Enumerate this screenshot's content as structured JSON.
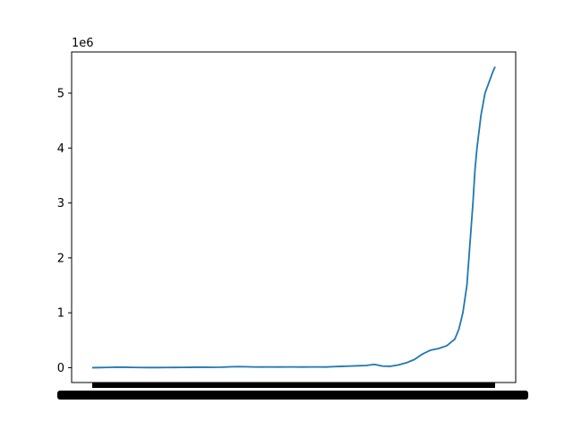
{
  "chart_data": {
    "type": "line",
    "title": "",
    "xlabel": "",
    "ylabel": "",
    "y_offset_label": "1e6",
    "y_tick_labels": [
      "0",
      "1",
      "2",
      "3",
      "4",
      "5"
    ],
    "y_tick_values": [
      0,
      1000000,
      2000000,
      3000000,
      4000000,
      5000000
    ],
    "ylim": [
      -270000,
      5750000
    ],
    "x_tick_labels_overlapping": true,
    "grid": false,
    "legend": "none",
    "series": [
      {
        "color": "#1f77b4",
        "x": [
          0,
          0.02,
          0.04,
          0.06,
          0.08,
          0.1,
          0.12,
          0.14,
          0.16,
          0.18,
          0.2,
          0.22,
          0.24,
          0.26,
          0.28,
          0.3,
          0.32,
          0.34,
          0.36,
          0.38,
          0.4,
          0.42,
          0.44,
          0.46,
          0.48,
          0.5,
          0.52,
          0.54,
          0.56,
          0.58,
          0.6,
          0.62,
          0.64,
          0.66,
          0.68,
          0.7,
          0.72,
          0.74,
          0.76,
          0.78,
          0.8,
          0.82,
          0.84,
          0.86,
          0.88,
          0.9,
          0.91,
          0.92,
          0.93,
          0.94,
          0.945,
          0.95,
          0.955,
          0.96,
          0.965,
          0.97,
          0.975,
          0.98,
          0.985,
          0.99,
          0.995,
          1.0
        ],
        "values": [
          0,
          2000,
          5000,
          10000,
          8000,
          5000,
          3000,
          2000,
          2000,
          3000,
          4000,
          5000,
          6000,
          8000,
          10000,
          7000,
          9000,
          15000,
          20000,
          18000,
          14000,
          12000,
          13000,
          12000,
          14000,
          13000,
          12000,
          14000,
          13000,
          12000,
          20000,
          25000,
          30000,
          35000,
          40000,
          60000,
          30000,
          25000,
          50000,
          90000,
          150000,
          250000,
          320000,
          350000,
          400000,
          520000,
          700000,
          1000000,
          1500000,
          2500000,
          3000000,
          3600000,
          4000000,
          4300000,
          4600000,
          4800000,
          5000000,
          5100000,
          5200000,
          5300000,
          5400000,
          5480000
        ]
      }
    ]
  }
}
